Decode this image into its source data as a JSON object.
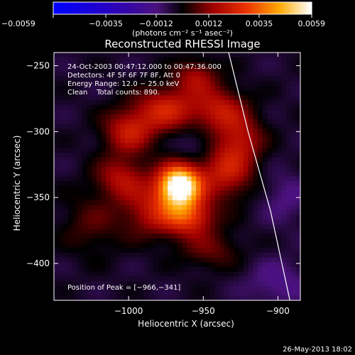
{
  "chart_data": {
    "type": "heatmap",
    "title": "Reconstructed RHESSI Image",
    "xlabel": "Heliocentric X (arcsec)",
    "ylabel": "Heliocentric Y (arcsec)",
    "xlim": [
      -1050,
      -885
    ],
    "ylim": [
      -428,
      -240
    ],
    "x_ticks": [
      -1000,
      -950,
      -900
    ],
    "x_tick_labels": [
      "−1000",
      "−950",
      "−900"
    ],
    "y_ticks": [
      -250,
      -300,
      -350,
      -400
    ],
    "y_tick_labels": [
      "−250",
      "−300",
      "−350",
      "−400"
    ],
    "grid": false,
    "colorbar": {
      "range": [
        -0.0059,
        0.0059
      ],
      "ticks": [
        -0.0059,
        -0.0035,
        -0.0012,
        0.0012,
        0.0035,
        0.0059
      ],
      "tick_labels": [
        "−0.0059",
        "−0.0035",
        "−0.0012",
        "0.0012",
        "0.0035",
        "0.0059"
      ],
      "unit_label": "(photons cm⁻² s⁻¹ asec⁻²)"
    },
    "info_lines": [
      "24-Oct-2003 00:47:12.000 to 00:47:36.000",
      "Detectors: 4F 5F 6F 7F 8F, Att 0",
      "Energy Range: 12.0 − 25.0 keV",
      "Clean    Total counts: 890."
    ],
    "peak_label": "Position of Peak = [−966,−341]",
    "peak": {
      "x": -966,
      "y": -341
    },
    "background_level": -0.0004,
    "sources": [
      {
        "x": -966,
        "y": -341,
        "sx": 10,
        "sy": 11,
        "amp": 0.007
      },
      {
        "x": -960,
        "y": -365,
        "sx": 12,
        "sy": 10,
        "amp": 0.003
      },
      {
        "x": -985,
        "y": -360,
        "sx": 14,
        "sy": 14,
        "amp": 0.002
      },
      {
        "x": -935,
        "y": -330,
        "sx": 13,
        "sy": 15,
        "amp": 0.0024
      },
      {
        "x": -1000,
        "y": -300,
        "sx": 12,
        "sy": 12,
        "amp": 0.0024
      },
      {
        "x": -975,
        "y": -283,
        "sx": 14,
        "sy": 12,
        "amp": 0.0026
      },
      {
        "x": -940,
        "y": -283,
        "sx": 13,
        "sy": 12,
        "amp": 0.0022
      },
      {
        "x": -955,
        "y": -258,
        "sx": 10,
        "sy": 9,
        "amp": 0.0018
      },
      {
        "x": -1005,
        "y": -335,
        "sx": 12,
        "sy": 11,
        "amp": 0.002
      },
      {
        "x": -925,
        "y": -305,
        "sx": 11,
        "sy": 13,
        "amp": 0.0018
      },
      {
        "x": -945,
        "y": -390,
        "sx": 14,
        "sy": 10,
        "amp": 0.0012
      },
      {
        "x": -1025,
        "y": -370,
        "sx": 14,
        "sy": 16,
        "amp": 0.001
      },
      {
        "x": -955,
        "y": -310,
        "sx": 10,
        "sy": 10,
        "amp": -0.0008
      },
      {
        "x": -900,
        "y": -415,
        "sx": 15,
        "sy": 12,
        "amp": -0.001
      },
      {
        "x": -895,
        "y": -350,
        "sx": 12,
        "sy": 14,
        "amp": -0.0008
      }
    ],
    "limb_curve": [
      [
        -933,
        -240
      ],
      [
        -920,
        -300
      ],
      [
        -905,
        -360
      ],
      [
        -892,
        -428
      ]
    ]
  },
  "footer": {
    "date": "26-May-2013 18:02"
  },
  "colors": {
    "background": "#000000",
    "text": "#ffffff"
  }
}
